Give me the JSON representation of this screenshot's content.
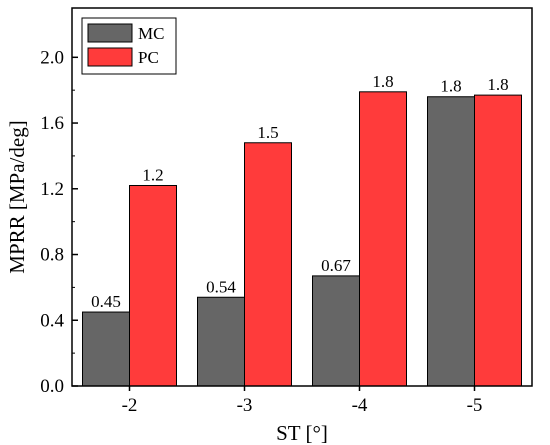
{
  "chart_data": {
    "type": "bar",
    "categories": [
      "-2",
      "-3",
      "-4",
      "-5"
    ],
    "series": [
      {
        "name": "MC",
        "values": [
          0.45,
          0.54,
          0.67,
          1.76
        ],
        "labels": [
          "0.45",
          "0.54",
          "0.67",
          "1.8"
        ],
        "color": "#666666"
      },
      {
        "name": "PC",
        "values": [
          1.22,
          1.48,
          1.79,
          1.77
        ],
        "labels": [
          "1.2",
          "1.5",
          "1.8",
          "1.8"
        ],
        "color": "#ff3b3b"
      }
    ],
    "xlabel": "ST [°]",
    "ylabel": "MPRR [MPa/deg]",
    "ylim": [
      0,
      2.3
    ],
    "yticks": [
      "0.0",
      "0.4",
      "0.8",
      "1.2",
      "1.6",
      "2.0"
    ],
    "legend_position": "top-left",
    "grid": false
  }
}
